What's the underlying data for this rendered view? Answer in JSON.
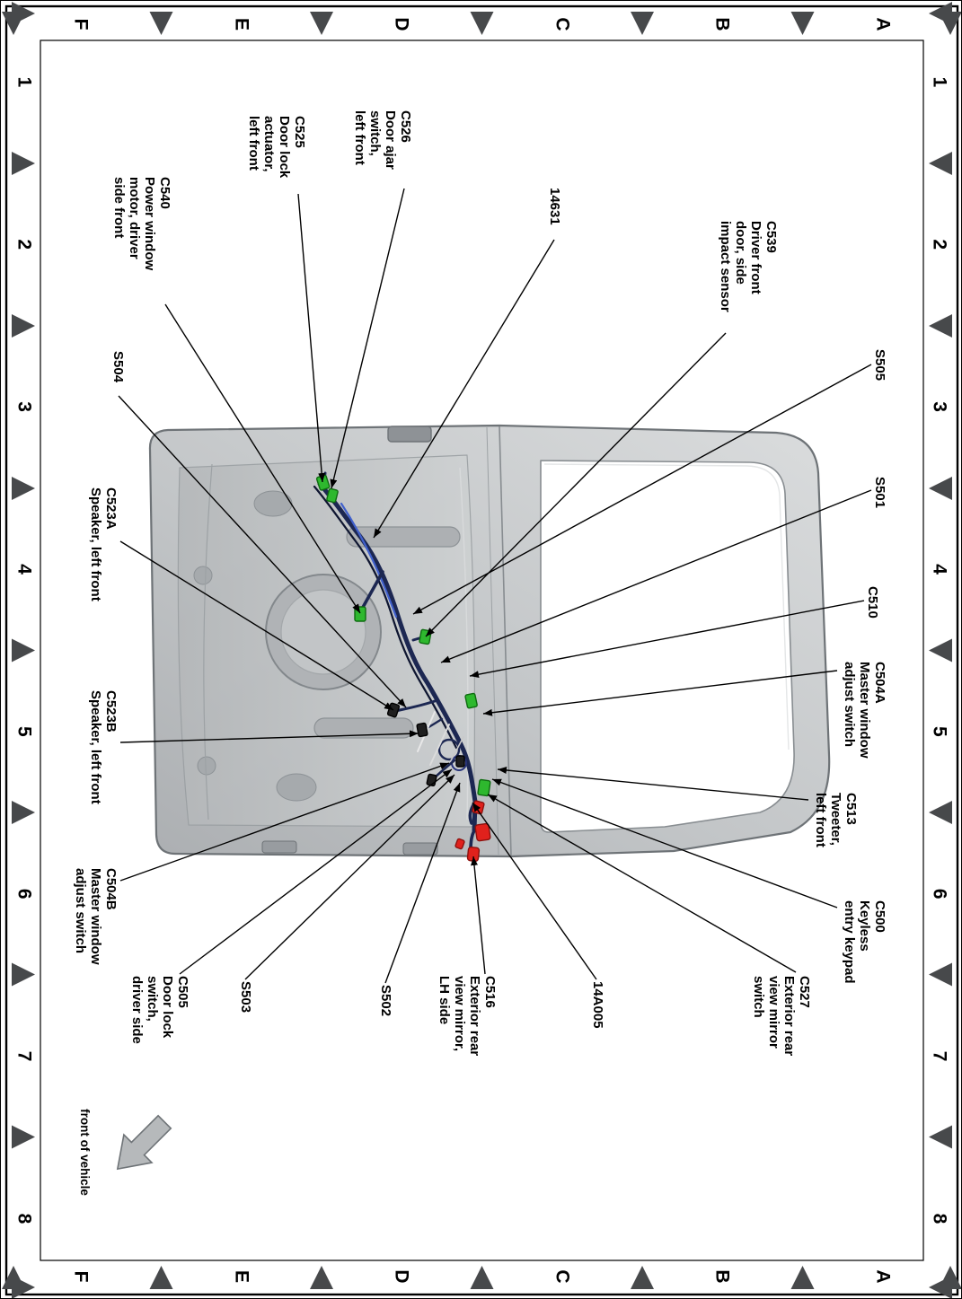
{
  "figure": {
    "kind": "vehicle-door-wire-harness-connector-location-diagram",
    "grid": {
      "columns": [
        "1",
        "2",
        "3",
        "4",
        "5",
        "6",
        "7",
        "8"
      ],
      "rows": [
        "A",
        "B",
        "C",
        "D",
        "E",
        "F"
      ]
    },
    "front_arrow_label": "front of vehicle",
    "callouts": [
      {
        "id": "C526",
        "lines": [
          "C526",
          "Door ajar",
          "switch,",
          "left front"
        ]
      },
      {
        "id": "C525",
        "lines": [
          "C525",
          "Door lock",
          "actuator,",
          "left front"
        ]
      },
      {
        "id": "C540",
        "lines": [
          "C540",
          "Power window",
          "motor, driver",
          "side front"
        ]
      },
      {
        "id": "14631",
        "lines": [
          "14631"
        ]
      },
      {
        "id": "C539",
        "lines": [
          "C539",
          "Driver front",
          "door, side",
          "impact sensor"
        ]
      },
      {
        "id": "S505",
        "lines": [
          "S505"
        ]
      },
      {
        "id": "S501",
        "lines": [
          "S501"
        ]
      },
      {
        "id": "C510",
        "lines": [
          "C510"
        ]
      },
      {
        "id": "C504A",
        "lines": [
          "C504A",
          "Master window",
          "adjust switch"
        ]
      },
      {
        "id": "C513",
        "lines": [
          "C513",
          "Tweeter,",
          "left front"
        ]
      },
      {
        "id": "C500",
        "lines": [
          "C500",
          "Keyless",
          "entry keypad"
        ]
      },
      {
        "id": "C527",
        "lines": [
          "C527",
          "Exterior rear",
          "view mirror",
          "switch"
        ]
      },
      {
        "id": "14A005",
        "lines": [
          "14A005"
        ]
      },
      {
        "id": "C516",
        "lines": [
          "C516",
          "Exterior rear",
          "view mirror,",
          "LH side"
        ]
      },
      {
        "id": "S502",
        "lines": [
          "S502"
        ]
      },
      {
        "id": "S503",
        "lines": [
          "S503"
        ]
      },
      {
        "id": "C505",
        "lines": [
          "C505",
          "Door lock",
          "switch,",
          "driver side"
        ]
      },
      {
        "id": "C504B",
        "lines": [
          "C504B",
          "Master window",
          "adjust switch"
        ]
      },
      {
        "id": "C523B",
        "lines": [
          "C523B",
          "Speaker, left front"
        ]
      },
      {
        "id": "C523A",
        "lines": [
          "C523A",
          "Speaker, left front"
        ]
      },
      {
        "id": "S504",
        "lines": [
          "S504"
        ]
      }
    ],
    "colors": {
      "page_background": "#ffffff",
      "border": "#000000",
      "zone_triangle": "#47494b",
      "door_gray": "#c3c6c8",
      "harness_blue": "#1c2752",
      "harness_light_blue": "#4060cc",
      "connector_green": "#2eb82e",
      "connector_red": "#e0211c",
      "connector_dark": "#1f1f1f",
      "leader_line": "#000000"
    }
  }
}
